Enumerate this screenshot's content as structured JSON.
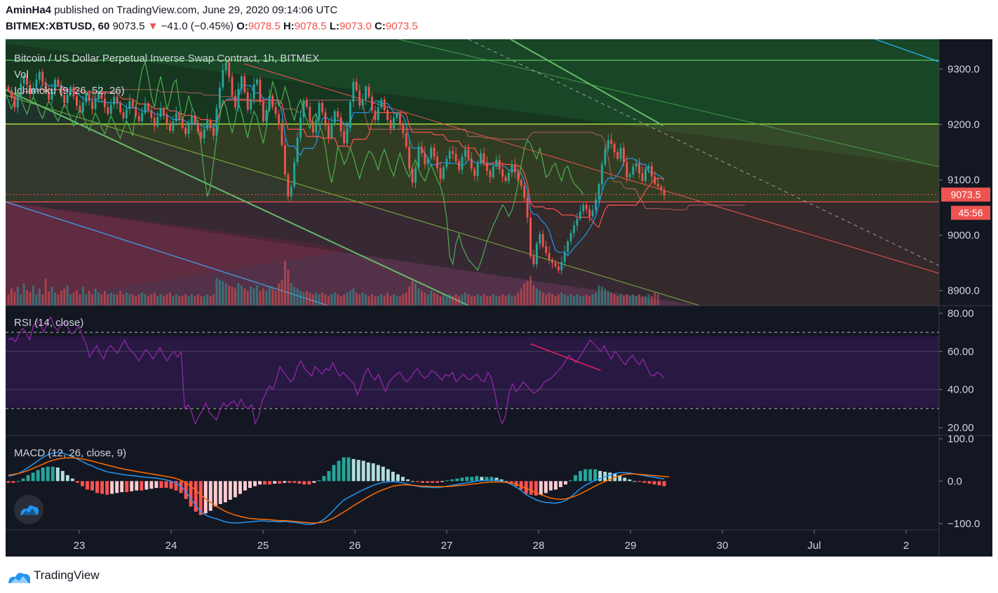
{
  "header": {
    "author": "AminHa4",
    "published_text": "published on TradingView.com, June 29, 2020 09:14:06 UTC",
    "symbol": "BITMEX:XBTUSD, 60",
    "last_price": "9073.5",
    "change": "−41.0 (−0.45%)",
    "o_label": "O:",
    "o_value": "9078.5",
    "h_label": "H:",
    "h_value": "9078.5",
    "l_label": "L:",
    "l_value": "9073.0",
    "c_label": "C:",
    "c_value": "9073.5"
  },
  "chart": {
    "legend_title": "Bitcoin / US Dollar Perpetual Inverse Swap Contract, 1h, BITMEX",
    "legend_vol": "Vol",
    "legend_ichimoku": "Ichimoku (9, 26, 52, 26)",
    "current_price_label": "9073.5",
    "countdown_label": "45:56",
    "colors": {
      "background": "#131722",
      "up": "#26a69a",
      "down": "#ef5350",
      "rsi_line": "#9c27b0",
      "macd_line": "#2196f3",
      "signal_line": "#ff6d00",
      "tenkan": "#2196f3",
      "kijun": "#ff5252",
      "chikou": "#4caf50"
    }
  },
  "rsi_panel": {
    "legend": "RSI (14, close)"
  },
  "macd_panel": {
    "legend": "MACD (12, 26, close, 9)"
  },
  "chart_data": [
    {
      "type": "candlestick",
      "title": "Bitcoin / US Dollar Perpetual Inverse Swap Contract, 1h, BITMEX",
      "x_ticks": [
        "23",
        "24",
        "25",
        "26",
        "27",
        "28",
        "29",
        "30",
        "Jul",
        "2"
      ],
      "y_ticks": [
        "9300.0",
        "9200.0",
        "9100.0",
        "9000.0",
        "8900.0"
      ],
      "ylim": [
        8873,
        9354
      ],
      "close_series": [
        9262,
        9248,
        9231,
        9252,
        9274,
        9288,
        9272,
        9255,
        9266,
        9281,
        9295,
        9276,
        9259,
        9245,
        9262,
        9281,
        9271,
        9253,
        9239,
        9254,
        9268,
        9251,
        9234,
        9223,
        9240,
        9256,
        9243,
        9228,
        9245,
        9260,
        9247,
        9231,
        9219,
        9236,
        9250,
        9238,
        9222,
        9211,
        9228,
        9243,
        9232,
        9216,
        9206,
        9221,
        9238,
        9226,
        9212,
        9197,
        9214,
        9229,
        9217,
        9201,
        9189,
        9206,
        9221,
        9209,
        9194,
        9183,
        9199,
        9216,
        9203,
        9187,
        9175,
        9192,
        9207,
        9194,
        9180,
        9229,
        9267,
        9298,
        9313,
        9286,
        9252,
        9231,
        9264,
        9287,
        9258,
        9227,
        9246,
        9273,
        9281,
        9241,
        9206,
        9226,
        9252,
        9232,
        9219,
        9200,
        9163,
        9110,
        9070,
        9088,
        9132,
        9176,
        9213,
        9244,
        9232,
        9205,
        9186,
        9208,
        9239,
        9222,
        9198,
        9176,
        9203,
        9224,
        9213,
        9188,
        9166,
        9194,
        9241,
        9277,
        9262,
        9234,
        9245,
        9268,
        9250,
        9225,
        9208,
        9231,
        9245,
        9226,
        9208,
        9193,
        9212,
        9220,
        9199,
        9185,
        9160,
        9120,
        9095,
        9122,
        9160,
        9148,
        9128,
        9139,
        9158,
        9142,
        9121,
        9102,
        9123,
        9138,
        9152,
        9147,
        9134,
        9118,
        9142,
        9155,
        9138,
        9120,
        9107,
        9130,
        9148,
        9131,
        9116,
        9105,
        9124,
        9136,
        9119,
        9106,
        9098,
        9113,
        9128,
        9114,
        9100,
        9089,
        9068,
        9032,
        8962,
        8948,
        8985,
        9002,
        8980,
        8968,
        8956,
        8950,
        8944,
        8937,
        8952,
        8970,
        8989,
        9004,
        9018,
        9030,
        9043,
        9055,
        9047,
        9034,
        9045,
        9065,
        9092,
        9128,
        9156,
        9172,
        9165,
        9150,
        9138,
        9158,
        9132,
        9105,
        9110,
        9124,
        9130,
        9112,
        9098,
        9120,
        9125,
        9106,
        9093,
        9088,
        9082,
        9073
      ],
      "volume_relative": [
        0.25,
        0.38,
        0.3,
        0.42,
        0.25,
        0.5,
        0.34,
        0.29,
        0.45,
        0.25,
        0.38,
        0.25,
        0.6,
        0.32,
        0.42,
        0.29,
        0.25,
        0.33,
        0.38,
        0.45,
        0.25,
        0.29,
        0.34,
        0.25,
        0.42,
        0.25,
        0.33,
        0.25,
        0.38,
        0.29,
        0.25,
        0.33,
        0.25,
        0.29,
        0.25,
        0.25,
        0.33,
        0.25,
        0.29,
        0.25,
        0.25,
        0.21,
        0.25,
        0.29,
        0.25,
        0.21,
        0.25,
        0.29,
        0.21,
        0.25,
        0.21,
        0.25,
        0.29,
        0.21,
        0.25,
        0.21,
        0.21,
        0.25,
        0.21,
        0.25,
        0.21,
        0.25,
        0.21,
        0.21,
        0.25,
        0.21,
        0.25,
        0.62,
        0.58,
        0.55,
        0.5,
        0.45,
        0.42,
        0.38,
        0.5,
        0.45,
        0.38,
        0.33,
        0.42,
        0.38,
        0.45,
        0.33,
        0.38,
        0.33,
        0.42,
        0.38,
        0.33,
        0.5,
        0.58,
        1.0,
        0.8,
        0.5,
        0.42,
        0.38,
        0.33,
        0.29,
        0.33,
        0.29,
        0.25,
        0.29,
        0.25,
        0.29,
        0.25,
        0.21,
        0.25,
        0.29,
        0.25,
        0.21,
        0.25,
        0.29,
        0.33,
        0.38,
        0.29,
        0.25,
        0.29,
        0.25,
        0.21,
        0.25,
        0.21,
        0.21,
        0.25,
        0.21,
        0.29,
        0.21,
        0.25,
        0.21,
        0.21,
        0.25,
        0.29,
        0.42,
        0.55,
        0.5,
        0.38,
        0.33,
        0.29,
        0.25,
        0.33,
        0.29,
        0.25,
        0.21,
        0.25,
        0.21,
        0.25,
        0.21,
        0.25,
        0.21,
        0.25,
        0.29,
        0.25,
        0.21,
        0.21,
        0.25,
        0.21,
        0.25,
        0.21,
        0.21,
        0.25,
        0.21,
        0.21,
        0.25,
        0.21,
        0.25,
        0.21,
        0.21,
        0.29,
        0.38,
        0.5,
        0.55,
        0.67,
        0.45,
        0.38,
        0.33,
        0.29,
        0.25,
        0.29,
        0.25,
        0.21,
        0.25,
        0.29,
        0.25,
        0.21,
        0.25,
        0.21,
        0.25,
        0.21,
        0.21,
        0.25,
        0.21,
        0.25,
        0.29,
        0.45,
        0.42,
        0.38,
        0.33,
        0.29,
        0.25,
        0.21,
        0.25,
        0.21,
        0.25,
        0.21,
        0.25,
        0.21,
        0.25,
        0.21,
        0.21,
        0.25,
        0.21,
        0.29,
        0.25
      ]
    },
    {
      "type": "line",
      "title": "RSI (14, close)",
      "y_ticks": [
        "80.00",
        "60.00",
        "40.00",
        "20.00"
      ],
      "ylim": [
        16,
        84
      ],
      "bands": [
        70,
        30
      ],
      "values": [
        66,
        67,
        65,
        69,
        72,
        70,
        66,
        73,
        76,
        74,
        70,
        75,
        78,
        73,
        71,
        74,
        76,
        72,
        69,
        71,
        73,
        68,
        64,
        57,
        60,
        63,
        59,
        56,
        61,
        63,
        61,
        59,
        63,
        66,
        62,
        60,
        58,
        55,
        58,
        61,
        59,
        56,
        59,
        62,
        58,
        55,
        58,
        60,
        57,
        60,
        30,
        32,
        28,
        22,
        26,
        29,
        33,
        28,
        26,
        24,
        29,
        33,
        31,
        33,
        34,
        31,
        35,
        31,
        30,
        32,
        22,
        26,
        34,
        38,
        42,
        40,
        45,
        52,
        49,
        47,
        44,
        46,
        52,
        55,
        51,
        49,
        47,
        52,
        50,
        48,
        51,
        50,
        54,
        50,
        47,
        49,
        47,
        45,
        43,
        37,
        42,
        48,
        51,
        47,
        45,
        48,
        43,
        39,
        44,
        46,
        48,
        49,
        46,
        44,
        46,
        49,
        51,
        48,
        46,
        47,
        50,
        49,
        47,
        45,
        48,
        47,
        49,
        44,
        46,
        48,
        46,
        45,
        47,
        48,
        45,
        44,
        49,
        46,
        38,
        28,
        22,
        26,
        38,
        43,
        39,
        41,
        44,
        42,
        40,
        38,
        39,
        41,
        44,
        45,
        46,
        48,
        50,
        52,
        55,
        58,
        56,
        54,
        57,
        60,
        63,
        66,
        64,
        62,
        60,
        63,
        59,
        56,
        60,
        58,
        55,
        53,
        56,
        58,
        55,
        53,
        56,
        52,
        48,
        47,
        49,
        48,
        46
      ],
      "trendline": [
        [
          148,
          64
        ],
        [
          168,
          50
        ]
      ]
    },
    {
      "type": "line+histogram",
      "title": "MACD (12, 26, close, 9)",
      "y_ticks": [
        "100.0",
        "0.0",
        "−100.0"
      ],
      "ylim": [
        -115,
        108
      ],
      "macd": [
        12,
        14,
        18,
        24,
        32,
        40,
        48,
        56,
        62,
        66,
        68,
        66,
        62,
        58,
        52,
        46,
        40,
        36,
        30,
        26,
        22,
        20,
        18,
        16,
        14,
        13,
        12,
        10,
        9,
        8,
        7,
        5,
        3,
        0,
        -5,
        -12,
        -25,
        -42,
        -58,
        -72,
        -80,
        -85,
        -88,
        -92,
        -96,
        -98,
        -99,
        -98,
        -97,
        -96,
        -95,
        -94,
        -94,
        -95,
        -95,
        -96,
        -95,
        -96,
        -97,
        -99,
        -101,
        -102,
        -101,
        -97,
        -90,
        -80,
        -68,
        -56,
        -45,
        -38,
        -32,
        -26,
        -20,
        -15,
        -10,
        -6,
        -3,
        -2,
        -1,
        -2,
        -4,
        -7,
        -10,
        -12,
        -14,
        -14,
        -15,
        -15,
        -14,
        -12,
        -10,
        -8,
        -6,
        -4,
        -2,
        0,
        1,
        2,
        3,
        2,
        0,
        -3,
        -8,
        -14,
        -22,
        -32,
        -38,
        -44,
        -48,
        -50,
        -51,
        -52,
        -50,
        -46,
        -38,
        -28,
        -18,
        -10,
        -4,
        2,
        6,
        10,
        14,
        18,
        20,
        20,
        19,
        17,
        15,
        13,
        11,
        9,
        7,
        5
      ],
      "signal": [
        14,
        16,
        18,
        21,
        25,
        30,
        35,
        40,
        45,
        49,
        52,
        54,
        55,
        55,
        54,
        52,
        50,
        47,
        44,
        41,
        38,
        35,
        32,
        29,
        27,
        25,
        23,
        21,
        19,
        17,
        15,
        13,
        11,
        9,
        6,
        2,
        -4,
        -12,
        -22,
        -32,
        -42,
        -50,
        -58,
        -65,
        -71,
        -76,
        -80,
        -83,
        -86,
        -88,
        -89,
        -90,
        -90,
        -91,
        -92,
        -93,
        -93,
        -94,
        -95,
        -96,
        -97,
        -98,
        -99,
        -98,
        -96,
        -92,
        -87,
        -80,
        -73,
        -66,
        -58,
        -51,
        -44,
        -37,
        -31,
        -25,
        -20,
        -16,
        -12,
        -10,
        -9,
        -9,
        -10,
        -11,
        -12,
        -12,
        -13,
        -13,
        -13,
        -13,
        -12,
        -11,
        -10,
        -9,
        -7,
        -6,
        -4,
        -3,
        -2,
        -2,
        -2,
        -3,
        -5,
        -8,
        -12,
        -17,
        -22,
        -27,
        -32,
        -36,
        -40,
        -42,
        -43,
        -42,
        -39,
        -35,
        -30,
        -24,
        -18,
        -12,
        -6,
        -1,
        4,
        9,
        13,
        16,
        17,
        17,
        16,
        15,
        14,
        13,
        12,
        11,
        10
      ]
    }
  ]
}
